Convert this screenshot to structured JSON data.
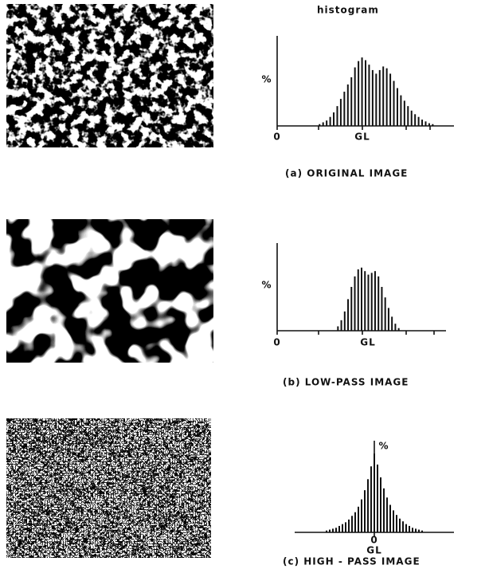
{
  "chart_data": [
    {
      "type": "bar",
      "title": "(a) ORIGINAL IMAGE",
      "annotation": "histogram",
      "ylabel": "%",
      "xlabel": "GL",
      "xlim": [
        0,
        100
      ],
      "ylim": [
        0,
        10
      ],
      "xticks": [
        0
      ],
      "color": "#111111",
      "x": [
        24,
        26,
        28,
        30,
        32,
        34,
        36,
        38,
        40,
        42,
        44,
        46,
        48,
        50,
        52,
        54,
        56,
        58,
        60,
        62,
        64,
        66,
        68,
        70,
        72,
        74,
        76,
        78,
        80,
        82,
        84,
        86,
        88
      ],
      "values": [
        0.2,
        0.4,
        0.6,
        1,
        1.5,
        2.2,
        3,
        3.8,
        4.6,
        5.4,
        6.5,
        7.2,
        7.6,
        7.3,
        6.8,
        6.2,
        5.8,
        6.2,
        6.6,
        6.4,
        5.8,
        5,
        4.2,
        3.4,
        2.8,
        2.2,
        1.7,
        1.3,
        1,
        0.7,
        0.5,
        0.3,
        0.2
      ]
    },
    {
      "type": "bar",
      "title": "(b) LOW-PASS IMAGE",
      "ylabel": "%",
      "xlabel": "GL",
      "xlim": [
        0,
        100
      ],
      "ylim": [
        0,
        10
      ],
      "xticks": [
        0
      ],
      "color": "#111111",
      "x": [
        36,
        38,
        40,
        42,
        44,
        46,
        48,
        50,
        52,
        54,
        56,
        58,
        60,
        62,
        64,
        66,
        68,
        70,
        72
      ],
      "values": [
        0.5,
        1.2,
        2.2,
        3.6,
        5,
        6.2,
        7,
        7.2,
        6.8,
        6.4,
        6.6,
        6.8,
        6.2,
        5,
        3.8,
        2.6,
        1.6,
        0.8,
        0.3
      ]
    },
    {
      "type": "bar",
      "title": "(c) HIGH - PASS IMAGE",
      "ylabel": "%",
      "xlabel": "GL",
      "xlim": [
        -50,
        50
      ],
      "ylim": [
        0,
        10
      ],
      "xticks": [
        0
      ],
      "color": "#111111",
      "x": [
        -30,
        -28,
        -26,
        -24,
        -22,
        -20,
        -18,
        -16,
        -14,
        -12,
        -10,
        -8,
        -6,
        -4,
        -2,
        0,
        2,
        4,
        6,
        8,
        10,
        12,
        14,
        16,
        18,
        20,
        22,
        24,
        26,
        28,
        30
      ],
      "values": [
        0.2,
        0.3,
        0.4,
        0.5,
        0.7,
        0.9,
        1.1,
        1.4,
        1.8,
        2.2,
        2.8,
        3.6,
        4.6,
        5.8,
        7.2,
        8.6,
        7.4,
        6,
        4.8,
        3.8,
        3,
        2.4,
        1.9,
        1.5,
        1.2,
        0.9,
        0.7,
        0.5,
        0.4,
        0.3,
        0.2
      ]
    }
  ]
}
